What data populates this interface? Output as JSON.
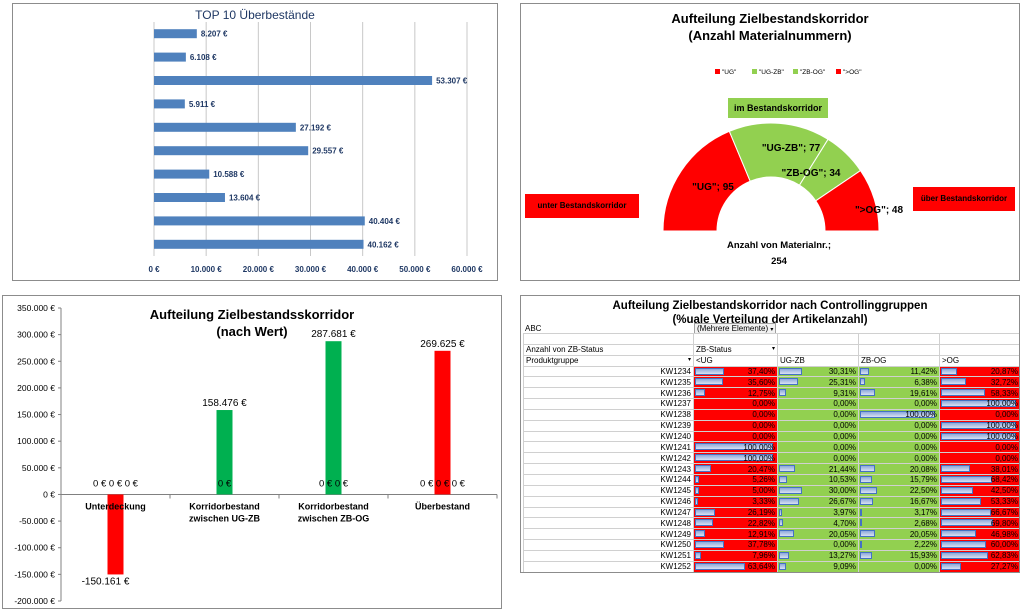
{
  "top10": {
    "title": "TOP 10 Überbestände",
    "chart_data": {
      "type": "bar",
      "orientation": "horizontal",
      "title": "TOP 10 Überbestände",
      "values": [
        8207,
        6108,
        53307,
        5911,
        27192,
        29557,
        10588,
        13604,
        40404,
        40162
      ],
      "labels": [
        "8.207 €",
        "6.108 €",
        "53.307 €",
        "5.911 €",
        "27.192 €",
        "29.557 €",
        "10.588 €",
        "13.604 €",
        "40.404 €",
        "40.162 €"
      ],
      "xlim": [
        0,
        60000
      ],
      "ticks": [
        "0 €",
        "10.000 €",
        "20.000 €",
        "30.000 €",
        "40.000 €",
        "50.000 €",
        "60.000 €"
      ],
      "color": "#4f81bd"
    }
  },
  "donut": {
    "title_line1": "Aufteilung Zielbestandskorridor",
    "title_line2": "(Anzahl Materialnummern)",
    "chart_data": {
      "type": "pie",
      "style": "half-donut",
      "categories": [
        "\"UG\"",
        "\"UG-ZB\"",
        "\"ZB-OG\"",
        "\">OG\""
      ],
      "values": [
        95,
        77,
        34,
        48
      ],
      "colors": [
        "#ff0000",
        "#92d050",
        "#92d050",
        "#ff0000"
      ],
      "slice_labels": [
        "\"UG\"; 95",
        "\"UG-ZB\"; 77",
        "\"ZB-OG\"; 34",
        "\">OG\"; 48"
      ],
      "total_label_line1": "Anzahl von Materialnr.;",
      "total_label_line2": "254"
    },
    "legend": [
      "\"UG\"",
      "\"UG-ZB\"",
      "\"ZB-OG\"",
      "\">OG\""
    ],
    "legend_colors": [
      "#ff0000",
      "#92d050",
      "#92d050",
      "#ff0000"
    ],
    "label_under": "unter Bestandskorridor",
    "label_in": "im Bestandskorridor",
    "label_over": "über Bestandskorridor"
  },
  "value": {
    "title_line1": "Aufteilung Zielbestandsskorridor",
    "title_line2": "(nach Wert)",
    "chart_data": {
      "type": "bar",
      "categories": [
        "Unterdeckung",
        "Korridorbestand zwischen UG-ZB",
        "Korridorbestand zwischen ZB-OG",
        "Überbestand"
      ],
      "category_lines": [
        [
          "Unterdeckung"
        ],
        [
          "Korridorbestand",
          "zwischen UG-ZB"
        ],
        [
          "Korridorbestand",
          "zwischen ZB-OG"
        ],
        [
          "Überbestand"
        ]
      ],
      "values": [
        -150161,
        158476,
        287681,
        269625
      ],
      "value_labels": [
        "-150.161 €",
        "158.476 €",
        "287.681 €",
        "269.625 €"
      ],
      "colors": [
        "#ff0000",
        "#00b050",
        "#00b050",
        "#ff0000"
      ],
      "zero_labels": [
        "0 € 0 € 0 €",
        "0 €",
        "0 € 0 €",
        "0 € 0 € 0 €"
      ],
      "ylim": [
        -200000,
        350000
      ],
      "yticks": [
        "-200.000 €",
        "-150.000 €",
        "-100.000 €",
        "-50.000 €",
        "0 €",
        "50.000 €",
        "100.000 €",
        "150.000 €",
        "200.000 €",
        "250.000 €",
        "300.000 €",
        "350.000 €"
      ]
    }
  },
  "pivot": {
    "title_line1": "Aufteilung Zielbestandskorridor nach Controllinggruppen",
    "title_line2": "(%uale Verteilung der Artikelanzahl)",
    "filter_label": "ABC",
    "filter_value": "(Mehrere Elemente)",
    "measure_label": "Anzahl von ZB-Status",
    "col_field": "ZB-Status",
    "row_field": "Produktgruppe",
    "col_headers": [
      "<UG",
      "UG-ZB",
      "ZB-OG",
      ">OG"
    ],
    "chart_data": {
      "type": "table",
      "rows": [
        [
          "KW1234",
          "37,40%",
          "30,31%",
          "11,42%",
          "20,87%"
        ],
        [
          "KW1235",
          "35,60%",
          "25,31%",
          "6,38%",
          "32,72%"
        ],
        [
          "KW1236",
          "12,75%",
          "9,31%",
          "19,61%",
          "58,33%"
        ],
        [
          "KW1237",
          "0,00%",
          "0,00%",
          "0,00%",
          "100,00%"
        ],
        [
          "KW1238",
          "0,00%",
          "0,00%",
          "100,00%",
          "0,00%"
        ],
        [
          "KW1239",
          "0,00%",
          "0,00%",
          "0,00%",
          "100,00%"
        ],
        [
          "KW1240",
          "0,00%",
          "0,00%",
          "0,00%",
          "100,00%"
        ],
        [
          "KW1241",
          "100,00%",
          "0,00%",
          "0,00%",
          "0,00%"
        ],
        [
          "KW1242",
          "100,00%",
          "0,00%",
          "0,00%",
          "0,00%"
        ],
        [
          "KW1243",
          "20,47%",
          "21,44%",
          "20,08%",
          "38,01%"
        ],
        [
          "KW1244",
          "5,26%",
          "10,53%",
          "15,79%",
          "68,42%"
        ],
        [
          "KW1245",
          "5,00%",
          "30,00%",
          "22,50%",
          "42,50%"
        ],
        [
          "KW1246",
          "3,33%",
          "26,67%",
          "16,67%",
          "53,33%"
        ],
        [
          "KW1247",
          "26,19%",
          "3,97%",
          "3,17%",
          "66,67%"
        ],
        [
          "KW1248",
          "22,82%",
          "4,70%",
          "2,68%",
          "69,80%"
        ],
        [
          "KW1249",
          "12,91%",
          "20,05%",
          "20,05%",
          "46,98%"
        ],
        [
          "KW1250",
          "37,78%",
          "0,00%",
          "2,22%",
          "60,00%"
        ],
        [
          "KW1251",
          "7,96%",
          "13,27%",
          "15,93%",
          "62,83%"
        ],
        [
          "KW1252",
          "63,64%",
          "9,09%",
          "0,00%",
          "27,27%"
        ]
      ]
    }
  }
}
